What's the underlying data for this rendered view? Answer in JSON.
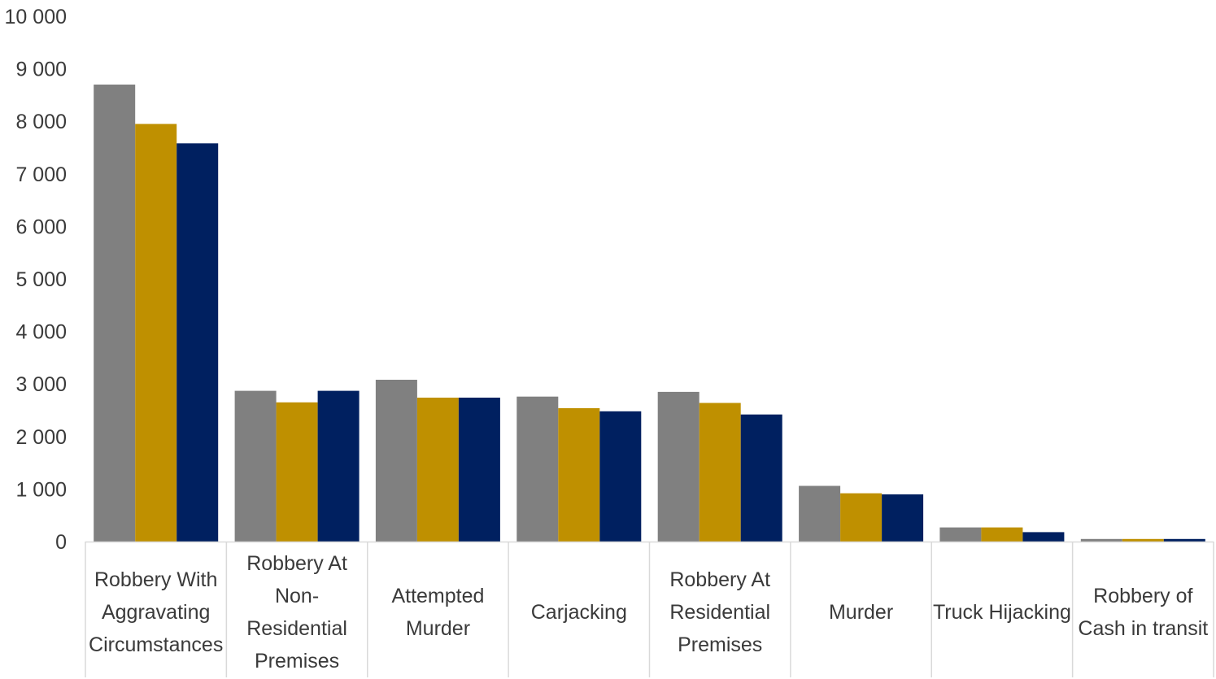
{
  "chart_data": {
    "type": "bar",
    "title": "",
    "xlabel": "",
    "ylabel": "",
    "ylim": [
      0,
      10000
    ],
    "yticks": [
      0,
      1000,
      2000,
      3000,
      4000,
      5000,
      6000,
      7000,
      8000,
      9000,
      10000
    ],
    "ytick_labels": [
      "0",
      "1 000",
      "2 000",
      "3 000",
      "4 000",
      "5 000",
      "6 000",
      "7 000",
      "8 000",
      "9 000",
      "10 000"
    ],
    "grid": false,
    "legend": "none",
    "categories": [
      "Robbery With Aggravating Circumstances",
      "Robbery At Non-Residential Premises",
      "Attempted Murder",
      "Carjacking",
      "Robbery At Residential Premises",
      "Murder",
      "Truck Hijacking",
      "Robbery of Cash in transit"
    ],
    "category_label_lines": [
      [
        "Robbery With",
        "Aggravating",
        "Circumstances"
      ],
      [
        "Robbery At",
        "Non-",
        "Residential",
        "Premises"
      ],
      [
        "Attempted",
        "Murder"
      ],
      [
        "Carjacking"
      ],
      [
        "Robbery At",
        "Residential",
        "Premises"
      ],
      [
        "Murder"
      ],
      [
        "Truck Hijacking"
      ],
      [
        "Robbery of",
        "Cash in transit"
      ]
    ],
    "series": [
      {
        "color": "#808080",
        "values": [
          8700,
          2870,
          3080,
          2760,
          2850,
          1060,
          270,
          50
        ]
      },
      {
        "color": "#BF9000",
        "values": [
          7950,
          2650,
          2740,
          2540,
          2640,
          920,
          270,
          50
        ]
      },
      {
        "color": "#002060",
        "values": [
          7580,
          2870,
          2740,
          2480,
          2420,
          900,
          180,
          50
        ]
      }
    ]
  }
}
